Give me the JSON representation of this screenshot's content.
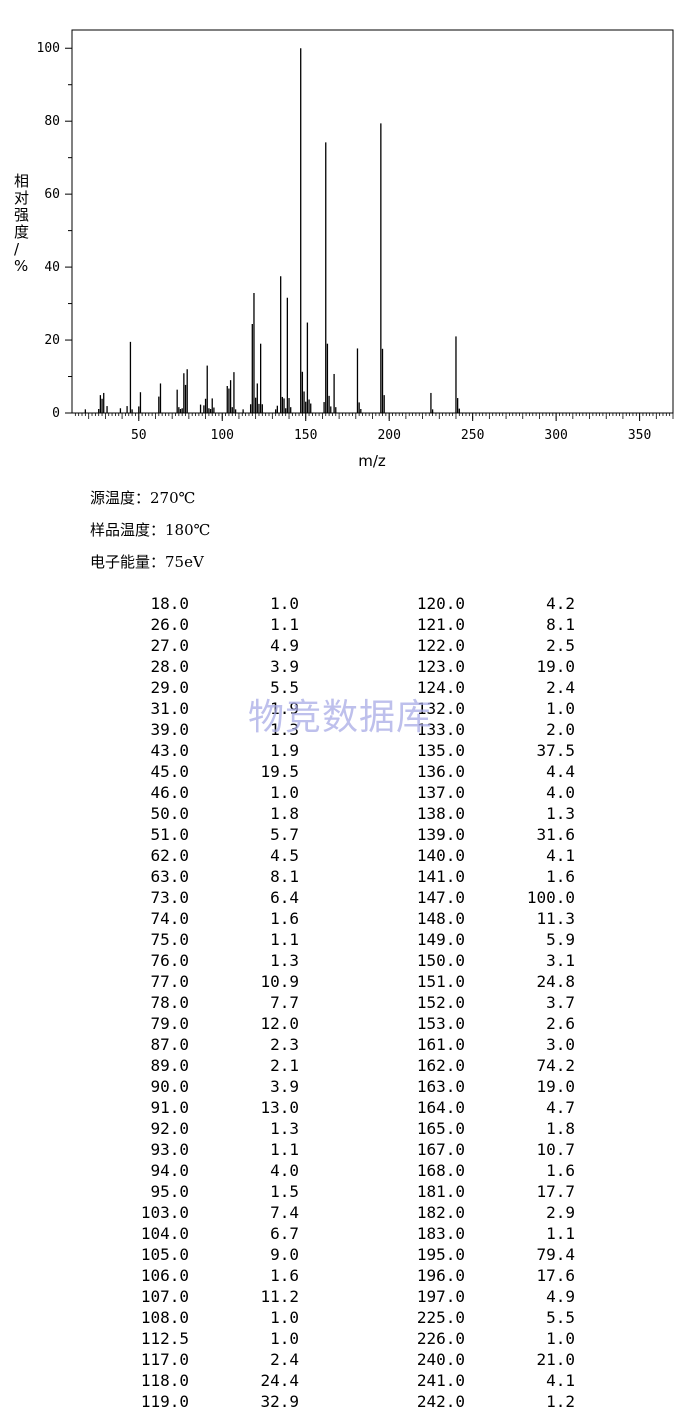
{
  "chart_data": {
    "type": "bar",
    "xlabel": "m/z",
    "ylabel": "相对强度/%",
    "xlim": [
      10,
      370
    ],
    "ylim": [
      0,
      105
    ],
    "xticks": [
      50,
      100,
      150,
      200,
      250,
      300,
      350
    ],
    "yticks": [
      0,
      20,
      40,
      60,
      80,
      100
    ],
    "grid": false,
    "x": [
      18.0,
      26.0,
      27.0,
      28.0,
      29.0,
      31.0,
      39.0,
      43.0,
      45.0,
      46.0,
      50.0,
      51.0,
      62.0,
      63.0,
      73.0,
      74.0,
      75.0,
      76.0,
      77.0,
      78.0,
      79.0,
      87.0,
      89.0,
      90.0,
      91.0,
      92.0,
      93.0,
      94.0,
      95.0,
      103.0,
      104.0,
      105.0,
      106.0,
      107.0,
      108.0,
      112.5,
      117.0,
      118.0,
      119.0,
      120.0,
      121.0,
      122.0,
      123.0,
      124.0,
      132.0,
      133.0,
      135.0,
      136.0,
      137.0,
      138.0,
      139.0,
      140.0,
      141.0,
      147.0,
      148.0,
      149.0,
      150.0,
      151.0,
      152.0,
      153.0,
      161.0,
      162.0,
      163.0,
      164.0,
      165.0,
      167.0,
      168.0,
      181.0,
      182.0,
      183.0,
      195.0,
      196.0,
      197.0,
      225.0,
      226.0,
      240.0,
      241.0,
      242.0
    ],
    "values": [
      1.0,
      1.1,
      4.9,
      3.9,
      5.5,
      1.9,
      1.3,
      1.9,
      19.5,
      1.0,
      1.8,
      5.7,
      4.5,
      8.1,
      6.4,
      1.6,
      1.1,
      1.3,
      10.9,
      7.7,
      12.0,
      2.3,
      2.1,
      3.9,
      13.0,
      1.3,
      1.1,
      4.0,
      1.5,
      7.4,
      6.7,
      9.0,
      1.6,
      11.2,
      1.0,
      1.0,
      2.4,
      24.4,
      32.9,
      4.2,
      8.1,
      2.5,
      19.0,
      2.4,
      1.0,
      2.0,
      37.5,
      4.4,
      4.0,
      1.3,
      31.6,
      4.1,
      1.6,
      100.0,
      11.3,
      5.9,
      3.1,
      24.8,
      3.7,
      2.6,
      3.0,
      74.2,
      19.0,
      4.7,
      1.8,
      10.7,
      1.6,
      17.7,
      2.9,
      1.1,
      79.4,
      17.6,
      4.9,
      5.5,
      1.0,
      21.0,
      4.1,
      1.2
    ]
  },
  "conditions": [
    "源温度：270℃",
    "样品温度：180℃",
    "电子能量：75eV"
  ],
  "watermark": "物竞数据库",
  "peak_table": {
    "left": [
      [
        "18.0",
        "1.0"
      ],
      [
        "26.0",
        "1.1"
      ],
      [
        "27.0",
        "4.9"
      ],
      [
        "28.0",
        "3.9"
      ],
      [
        "29.0",
        "5.5"
      ],
      [
        "31.0",
        "1.9"
      ],
      [
        "39.0",
        "1.3"
      ],
      [
        "43.0",
        "1.9"
      ],
      [
        "45.0",
        "19.5"
      ],
      [
        "46.0",
        "1.0"
      ],
      [
        "50.0",
        "1.8"
      ],
      [
        "51.0",
        "5.7"
      ],
      [
        "62.0",
        "4.5"
      ],
      [
        "63.0",
        "8.1"
      ],
      [
        "73.0",
        "6.4"
      ],
      [
        "74.0",
        "1.6"
      ],
      [
        "75.0",
        "1.1"
      ],
      [
        "76.0",
        "1.3"
      ],
      [
        "77.0",
        "10.9"
      ],
      [
        "78.0",
        "7.7"
      ],
      [
        "79.0",
        "12.0"
      ],
      [
        "87.0",
        "2.3"
      ],
      [
        "89.0",
        "2.1"
      ],
      [
        "90.0",
        "3.9"
      ],
      [
        "91.0",
        "13.0"
      ],
      [
        "92.0",
        "1.3"
      ],
      [
        "93.0",
        "1.1"
      ],
      [
        "94.0",
        "4.0"
      ],
      [
        "95.0",
        "1.5"
      ],
      [
        "103.0",
        "7.4"
      ],
      [
        "104.0",
        "6.7"
      ],
      [
        "105.0",
        "9.0"
      ],
      [
        "106.0",
        "1.6"
      ],
      [
        "107.0",
        "11.2"
      ],
      [
        "108.0",
        "1.0"
      ],
      [
        "112.5",
        "1.0"
      ],
      [
        "117.0",
        "2.4"
      ],
      [
        "118.0",
        "24.4"
      ],
      [
        "119.0",
        "32.9"
      ]
    ],
    "right": [
      [
        "120.0",
        "4.2"
      ],
      [
        "121.0",
        "8.1"
      ],
      [
        "122.0",
        "2.5"
      ],
      [
        "123.0",
        "19.0"
      ],
      [
        "124.0",
        "2.4"
      ],
      [
        "132.0",
        "1.0"
      ],
      [
        "133.0",
        "2.0"
      ],
      [
        "135.0",
        "37.5"
      ],
      [
        "136.0",
        "4.4"
      ],
      [
        "137.0",
        "4.0"
      ],
      [
        "138.0",
        "1.3"
      ],
      [
        "139.0",
        "31.6"
      ],
      [
        "140.0",
        "4.1"
      ],
      [
        "141.0",
        "1.6"
      ],
      [
        "147.0",
        "100.0"
      ],
      [
        "148.0",
        "11.3"
      ],
      [
        "149.0",
        "5.9"
      ],
      [
        "150.0",
        "3.1"
      ],
      [
        "151.0",
        "24.8"
      ],
      [
        "152.0",
        "3.7"
      ],
      [
        "153.0",
        "2.6"
      ],
      [
        "161.0",
        "3.0"
      ],
      [
        "162.0",
        "74.2"
      ],
      [
        "163.0",
        "19.0"
      ],
      [
        "164.0",
        "4.7"
      ],
      [
        "165.0",
        "1.8"
      ],
      [
        "167.0",
        "10.7"
      ],
      [
        "168.0",
        "1.6"
      ],
      [
        "181.0",
        "17.7"
      ],
      [
        "182.0",
        "2.9"
      ],
      [
        "183.0",
        "1.1"
      ],
      [
        "195.0",
        "79.4"
      ],
      [
        "196.0",
        "17.6"
      ],
      [
        "197.0",
        "4.9"
      ],
      [
        "225.0",
        "5.5"
      ],
      [
        "226.0",
        "1.0"
      ],
      [
        "240.0",
        "21.0"
      ],
      [
        "241.0",
        "4.1"
      ],
      [
        "242.0",
        "1.2"
      ]
    ]
  }
}
